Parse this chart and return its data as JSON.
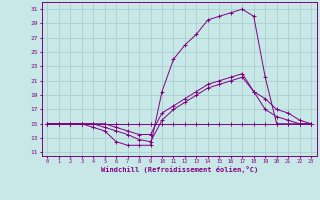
{
  "xlabel": "Windchill (Refroidissement éolien,°C)",
  "bg_color": "#c8e8e8",
  "line_color": "#800080",
  "grid_color": "#a8d0d0",
  "xlim": [
    -0.5,
    23.5
  ],
  "ylim": [
    10.5,
    32.0
  ],
  "xticks": [
    0,
    1,
    2,
    3,
    4,
    5,
    6,
    7,
    8,
    9,
    10,
    11,
    12,
    13,
    14,
    15,
    16,
    17,
    18,
    19,
    20,
    21,
    22,
    23
  ],
  "yticks": [
    11,
    13,
    15,
    17,
    19,
    21,
    23,
    25,
    27,
    29,
    31
  ],
  "curves": [
    {
      "x": [
        0,
        1,
        2,
        3,
        4,
        5,
        6,
        7,
        8,
        9,
        10,
        11,
        12,
        13,
        14,
        15,
        16,
        17,
        18,
        19,
        20,
        21,
        22,
        23
      ],
      "y": [
        15,
        15,
        15,
        15,
        14.5,
        14,
        12.5,
        12,
        12,
        12,
        19.5,
        24,
        26,
        27.5,
        29.5,
        30,
        30.5,
        31,
        30,
        21.5,
        15,
        15,
        15,
        15
      ]
    },
    {
      "x": [
        0,
        1,
        2,
        3,
        4,
        5,
        6,
        7,
        8,
        9,
        10,
        11,
        12,
        13,
        14,
        15,
        16,
        17,
        18,
        19,
        20,
        21,
        22,
        23
      ],
      "y": [
        15,
        15,
        15,
        15,
        15,
        15,
        15,
        15,
        15,
        15,
        15,
        15,
        15,
        15,
        15,
        15,
        15,
        15,
        15,
        15,
        15,
        15,
        15,
        15
      ]
    },
    {
      "x": [
        0,
        1,
        2,
        3,
        4,
        5,
        6,
        7,
        8,
        9,
        10,
        11,
        12,
        13,
        14,
        15,
        16,
        17,
        18,
        19,
        20,
        21,
        22,
        23
      ],
      "y": [
        15,
        15,
        15,
        15,
        15,
        14.5,
        14,
        13.5,
        12.8,
        12.5,
        15.5,
        17,
        18,
        19,
        20,
        20.5,
        21,
        21.5,
        19.5,
        17,
        16,
        15.5,
        15,
        15
      ]
    },
    {
      "x": [
        0,
        1,
        2,
        3,
        4,
        5,
        6,
        7,
        8,
        9,
        10,
        11,
        12,
        13,
        14,
        15,
        16,
        17,
        18,
        19,
        20,
        21,
        22,
        23
      ],
      "y": [
        15,
        15,
        15,
        15,
        15,
        15,
        14.5,
        14,
        13.5,
        13.5,
        16.5,
        17.5,
        18.5,
        19.5,
        20.5,
        21,
        21.5,
        22,
        19.5,
        18.5,
        17,
        16.5,
        15.5,
        15
      ]
    }
  ]
}
